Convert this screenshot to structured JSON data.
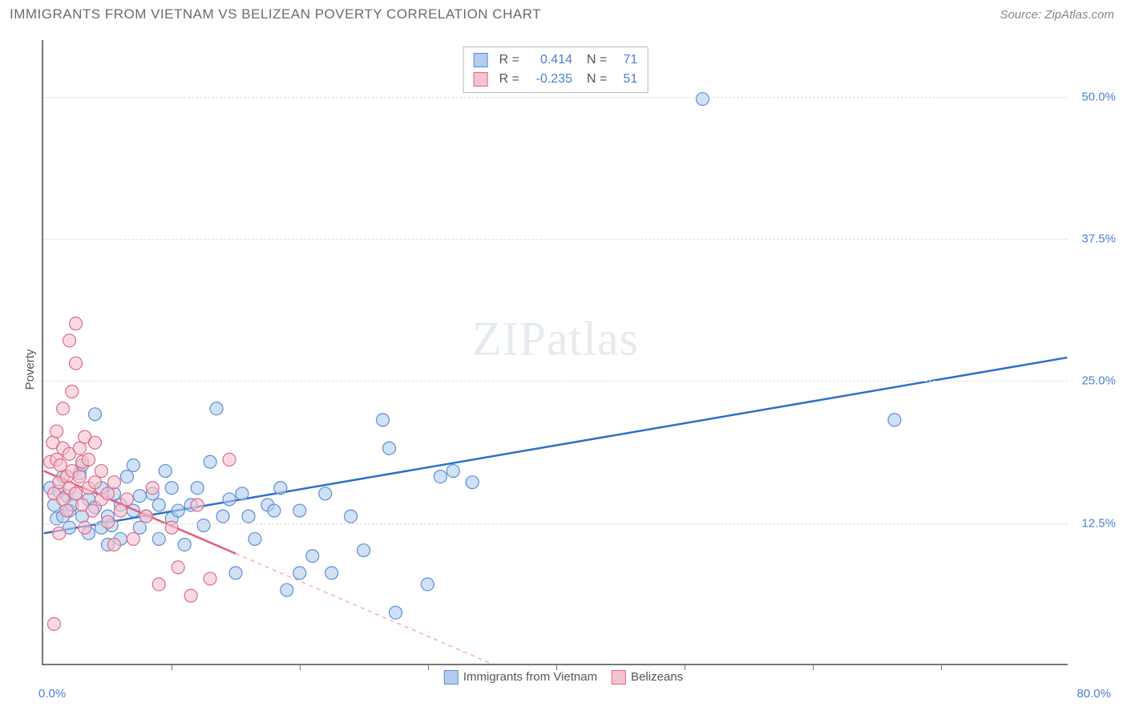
{
  "header": {
    "title": "IMMIGRANTS FROM VIETNAM VS BELIZEAN POVERTY CORRELATION CHART",
    "source": "Source: ZipAtlas.com"
  },
  "watermark": {
    "bold": "ZIP",
    "light": "atlas"
  },
  "chart": {
    "type": "scatter",
    "ylabel": "Poverty",
    "xlim": [
      0,
      80
    ],
    "ylim": [
      0,
      55
    ],
    "x_tick_step": 10,
    "y_ticks": [
      12.5,
      25.0,
      37.5,
      50.0
    ],
    "y_tick_labels": [
      "12.5%",
      "25.0%",
      "37.5%",
      "50.0%"
    ],
    "x_min_label": "0.0%",
    "x_max_label": "80.0%",
    "background_color": "#ffffff",
    "grid_color": "#dddddd",
    "axis_color": "#777777",
    "label_color": "#555555",
    "tick_label_color": "#4a7fd3",
    "series": [
      {
        "name": "Immigrants from Vietnam",
        "color_fill": "#b3cdef",
        "color_stroke": "#5b8fd6",
        "marker_radius": 8,
        "fill_opacity": 0.6,
        "R": "0.414",
        "N": "71",
        "trend": {
          "x1": 0,
          "y1": 11.5,
          "x2": 80,
          "y2": 27.0,
          "solid_until_x": 80,
          "color": "#2f6fc9",
          "width": 2.5
        },
        "points": [
          [
            0.5,
            15.5
          ],
          [
            0.8,
            14.0
          ],
          [
            1.0,
            12.8
          ],
          [
            1.2,
            15.2
          ],
          [
            1.5,
            13.0
          ],
          [
            1.5,
            16.5
          ],
          [
            1.8,
            14.8
          ],
          [
            2.0,
            13.5
          ],
          [
            2.0,
            12.0
          ],
          [
            2.2,
            14.0
          ],
          [
            2.5,
            15.0
          ],
          [
            2.8,
            16.8
          ],
          [
            3.0,
            13.0
          ],
          [
            3.0,
            17.5
          ],
          [
            3.5,
            11.5
          ],
          [
            3.5,
            14.5
          ],
          [
            4.0,
            13.8
          ],
          [
            4.0,
            22.0
          ],
          [
            4.5,
            12.0
          ],
          [
            4.5,
            15.5
          ],
          [
            5.0,
            13.0
          ],
          [
            5.0,
            10.5
          ],
          [
            5.5,
            15.0
          ],
          [
            6.0,
            14.0
          ],
          [
            6.0,
            11.0
          ],
          [
            6.5,
            16.5
          ],
          [
            7.0,
            13.5
          ],
          [
            7.0,
            17.5
          ],
          [
            7.5,
            12.0
          ],
          [
            7.5,
            14.8
          ],
          [
            8.0,
            13.0
          ],
          [
            8.5,
            15.0
          ],
          [
            9.0,
            11.0
          ],
          [
            9.0,
            14.0
          ],
          [
            9.5,
            17.0
          ],
          [
            10.0,
            12.8
          ],
          [
            10.0,
            15.5
          ],
          [
            10.5,
            13.5
          ],
          [
            11.0,
            10.5
          ],
          [
            11.5,
            14.0
          ],
          [
            12.0,
            15.5
          ],
          [
            12.5,
            12.2
          ],
          [
            13.0,
            17.8
          ],
          [
            13.5,
            22.5
          ],
          [
            14.0,
            13.0
          ],
          [
            14.5,
            14.5
          ],
          [
            15.0,
            8.0
          ],
          [
            15.5,
            15.0
          ],
          [
            16.0,
            13.0
          ],
          [
            16.5,
            11.0
          ],
          [
            17.5,
            14.0
          ],
          [
            18.0,
            13.5
          ],
          [
            18.5,
            15.5
          ],
          [
            19.0,
            6.5
          ],
          [
            20.0,
            8.0
          ],
          [
            20.0,
            13.5
          ],
          [
            21.0,
            9.5
          ],
          [
            22.0,
            15.0
          ],
          [
            22.5,
            8.0
          ],
          [
            24.0,
            13.0
          ],
          [
            25.0,
            10.0
          ],
          [
            26.5,
            21.5
          ],
          [
            27.0,
            19.0
          ],
          [
            27.5,
            4.5
          ],
          [
            30.0,
            7.0
          ],
          [
            31.0,
            16.5
          ],
          [
            32.0,
            17.0
          ],
          [
            33.5,
            16.0
          ],
          [
            51.5,
            49.8
          ],
          [
            66.5,
            21.5
          ],
          [
            5.3,
            12.2
          ]
        ]
      },
      {
        "name": "Belizeans",
        "color_fill": "#f6c2ce",
        "color_stroke": "#e06a87",
        "marker_radius": 8,
        "fill_opacity": 0.6,
        "R": "-0.235",
        "N": "51",
        "trend": {
          "x1": 0,
          "y1": 17.0,
          "x2": 35,
          "y2": 0.0,
          "solid_until_x": 15,
          "color": "#e85b7f",
          "width": 2.5
        },
        "points": [
          [
            0.5,
            17.8
          ],
          [
            0.7,
            19.5
          ],
          [
            0.8,
            15.0
          ],
          [
            1.0,
            18.0
          ],
          [
            1.0,
            20.5
          ],
          [
            1.2,
            16.0
          ],
          [
            1.3,
            17.5
          ],
          [
            1.5,
            14.5
          ],
          [
            1.5,
            19.0
          ],
          [
            1.5,
            22.5
          ],
          [
            1.8,
            16.5
          ],
          [
            1.8,
            13.5
          ],
          [
            2.0,
            18.5
          ],
          [
            2.0,
            15.5
          ],
          [
            2.0,
            28.5
          ],
          [
            2.2,
            17.0
          ],
          [
            2.2,
            24.0
          ],
          [
            2.5,
            15.0
          ],
          [
            2.5,
            26.5
          ],
          [
            2.5,
            30.0
          ],
          [
            2.8,
            16.5
          ],
          [
            2.8,
            19.0
          ],
          [
            3.0,
            14.0
          ],
          [
            3.0,
            17.8
          ],
          [
            3.2,
            20.0
          ],
          [
            3.5,
            15.5
          ],
          [
            3.5,
            18.0
          ],
          [
            3.8,
            13.5
          ],
          [
            4.0,
            16.0
          ],
          [
            4.0,
            19.5
          ],
          [
            4.5,
            14.5
          ],
          [
            4.5,
            17.0
          ],
          [
            5.0,
            15.0
          ],
          [
            5.0,
            12.5
          ],
          [
            5.5,
            10.5
          ],
          [
            5.5,
            16.0
          ],
          [
            6.0,
            13.5
          ],
          [
            6.5,
            14.5
          ],
          [
            7.0,
            11.0
          ],
          [
            8.0,
            13.0
          ],
          [
            8.5,
            15.5
          ],
          [
            9.0,
            7.0
          ],
          [
            10.0,
            12.0
          ],
          [
            10.5,
            8.5
          ],
          [
            11.5,
            6.0
          ],
          [
            12.0,
            14.0
          ],
          [
            13.0,
            7.5
          ],
          [
            14.5,
            18.0
          ],
          [
            0.8,
            3.5
          ],
          [
            1.2,
            11.5
          ],
          [
            3.2,
            12.0
          ]
        ]
      }
    ],
    "legend_box": {
      "rows": [
        {
          "swatch_fill": "#b3cdef",
          "swatch_stroke": "#5b8fd6",
          "R_label": "R =",
          "R": "0.414",
          "N_label": "N =",
          "N": "71"
        },
        {
          "swatch_fill": "#f6c2ce",
          "swatch_stroke": "#e06a87",
          "R_label": "R =",
          "R": "-0.235",
          "N_label": "N =",
          "N": "51"
        }
      ]
    },
    "bottom_legend": [
      {
        "swatch_fill": "#b3cdef",
        "swatch_stroke": "#5b8fd6",
        "label": "Immigrants from Vietnam"
      },
      {
        "swatch_fill": "#f6c2ce",
        "swatch_stroke": "#e06a87",
        "label": "Belizeans"
      }
    ]
  }
}
